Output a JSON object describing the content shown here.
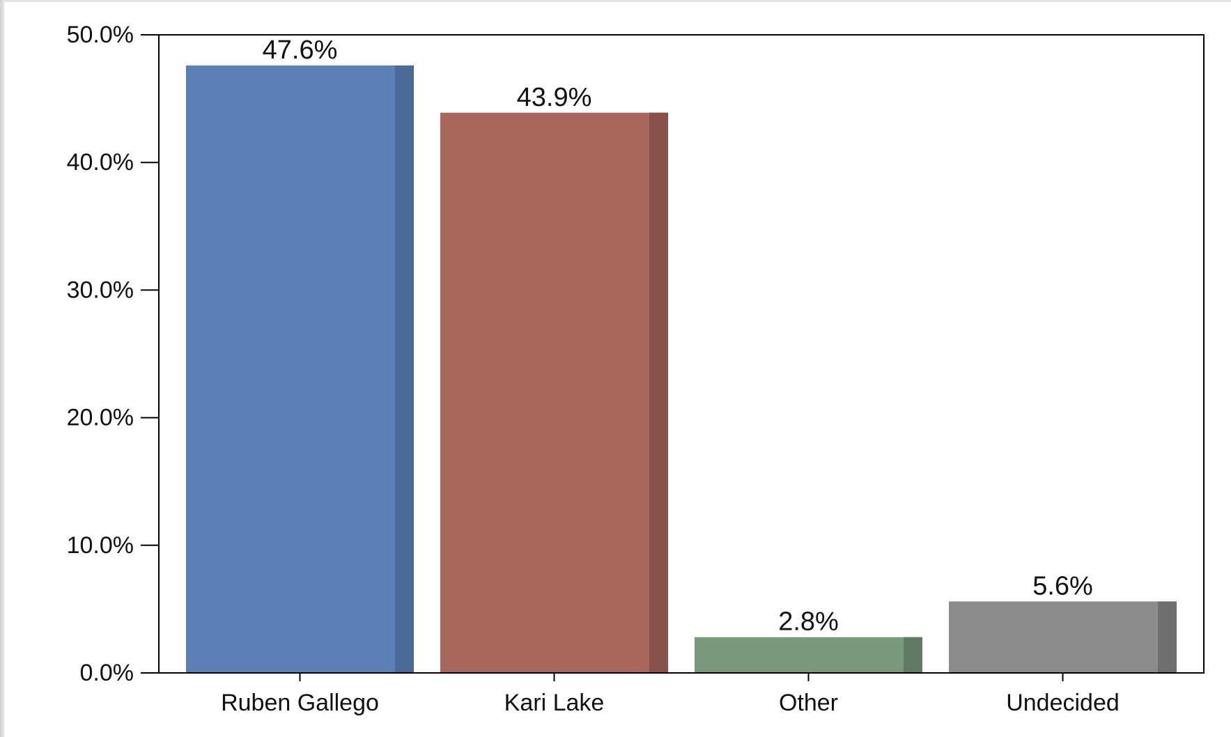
{
  "chart_data": {
    "type": "bar",
    "title": "",
    "xlabel": "",
    "ylabel": "",
    "categories": [
      "Ruben Gallego",
      "Kari Lake",
      "Other",
      "Undecided"
    ],
    "values": [
      47.6,
      43.9,
      2.8,
      5.6
    ],
    "data_labels": [
      "47.6%",
      "43.9%",
      "2.8%",
      "5.6%"
    ],
    "colors": [
      "#5b80b6",
      "#a8675c",
      "#7a987a",
      "#8c8c8c"
    ],
    "shade_colors": [
      "#496a99",
      "#8a514a",
      "#637a62",
      "#6f6f6f"
    ],
    "ylim": [
      0,
      50
    ],
    "yticks": [
      0,
      10,
      20,
      30,
      40,
      50
    ],
    "ytick_labels": [
      "0.0%",
      "10.0%",
      "20.0%",
      "30.0%",
      "40.0%",
      "50.0%"
    ],
    "grid": false,
    "legend": "none"
  }
}
